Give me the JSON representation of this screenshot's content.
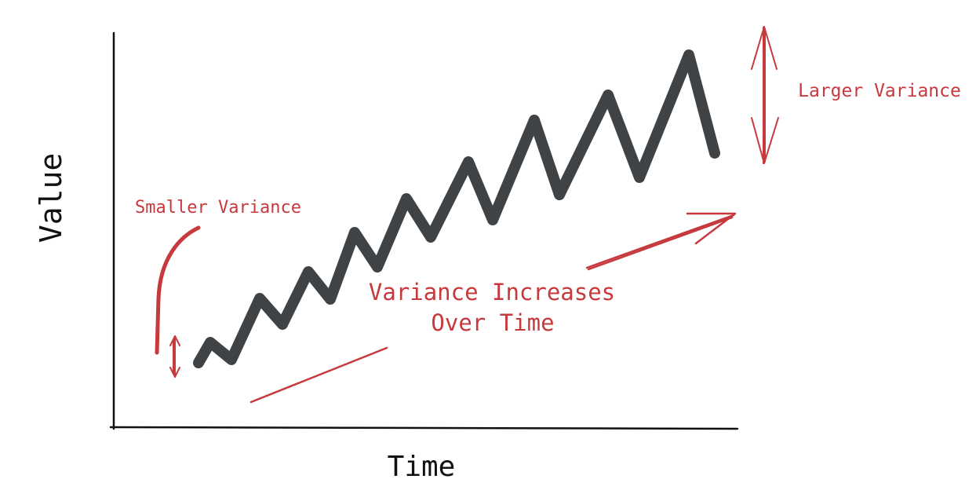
{
  "colors": {
    "axis": "#111111",
    "series": "#3f4346",
    "annotation": "#c6393d",
    "background": "#ffffff"
  },
  "axes": {
    "x_label": "Time",
    "y_label": "Value"
  },
  "annotations": {
    "smaller_variance": "Smaller Variance",
    "larger_variance": "Larger Variance",
    "trend_line1": "Variance Increases",
    "trend_line2": "Over Time"
  }
}
